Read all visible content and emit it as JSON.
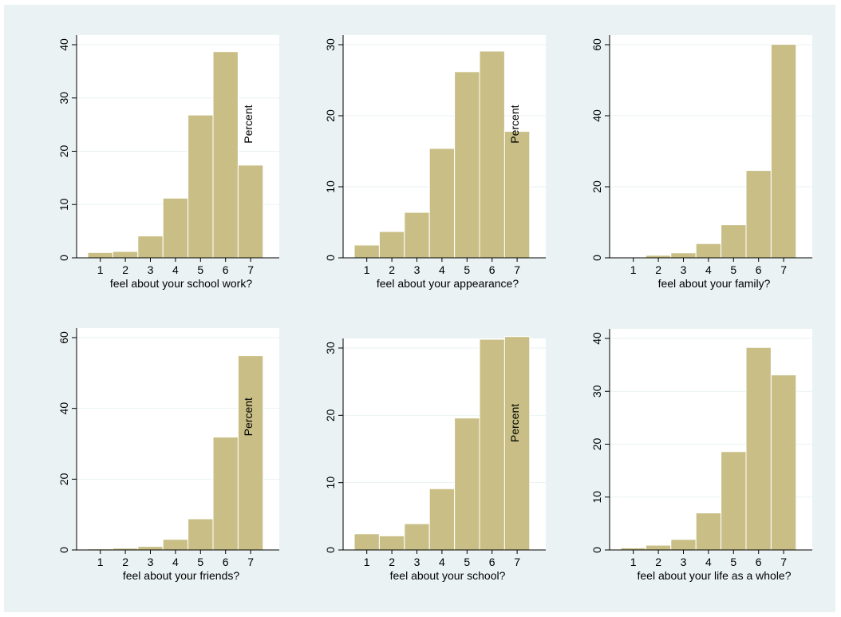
{
  "figure": {
    "background": "#eaf2f3",
    "plot_background": "#ffffff",
    "bar_color": "#c9bf86"
  },
  "chart_data": [
    {
      "type": "bar",
      "categories": [
        "1",
        "2",
        "3",
        "4",
        "5",
        "6",
        "7"
      ],
      "values": [
        1.0,
        1.2,
        4.1,
        11.2,
        26.8,
        38.7,
        17.4
      ],
      "xlabel": "feel about your school work?",
      "ylabel": "Percent",
      "yticks": [
        0,
        10,
        20,
        30,
        40
      ],
      "ylim": [
        0,
        40
      ]
    },
    {
      "type": "bar",
      "categories": [
        "1",
        "2",
        "3",
        "4",
        "5",
        "6",
        "7"
      ],
      "values": [
        1.8,
        3.7,
        6.4,
        15.4,
        26.2,
        29.1,
        17.8
      ],
      "xlabel": "feel about your appearance?",
      "ylabel": "Percent",
      "yticks": [
        0,
        10,
        20,
        30
      ],
      "ylim": [
        0,
        30
      ]
    },
    {
      "type": "bar",
      "categories": [
        "1",
        "2",
        "3",
        "4",
        "5",
        "6",
        "7"
      ],
      "values": [
        0.2,
        0.7,
        1.4,
        4.0,
        9.3,
        24.6,
        60.1
      ],
      "xlabel": "feel about your family?",
      "ylabel": "",
      "yticks": [
        0,
        20,
        40,
        60
      ],
      "ylim": [
        0,
        60
      ]
    },
    {
      "type": "bar",
      "categories": [
        "1",
        "2",
        "3",
        "4",
        "5",
        "6",
        "7"
      ],
      "values": [
        0.3,
        0.5,
        1.0,
        3.0,
        8.8,
        31.9,
        54.9
      ],
      "xlabel": "feel about your friends?",
      "ylabel": "Percent",
      "yticks": [
        0,
        20,
        40,
        60
      ],
      "ylim": [
        0,
        60
      ]
    },
    {
      "type": "bar",
      "categories": [
        "1",
        "2",
        "3",
        "4",
        "5",
        "6",
        "7"
      ],
      "values": [
        2.4,
        2.1,
        3.9,
        9.1,
        19.6,
        31.3,
        31.7
      ],
      "xlabel": "feel about your school?",
      "ylabel": "Percent",
      "yticks": [
        0,
        10,
        20,
        30
      ],
      "ylim": [
        0,
        30
      ]
    },
    {
      "type": "bar",
      "categories": [
        "1",
        "2",
        "3",
        "4",
        "5",
        "6",
        "7"
      ],
      "values": [
        0.4,
        0.9,
        2.0,
        7.0,
        18.6,
        38.3,
        33.1
      ],
      "xlabel": "feel about your life as a whole?",
      "ylabel": "",
      "yticks": [
        0,
        10,
        20,
        30,
        40
      ],
      "ylim": [
        0,
        40
      ]
    }
  ]
}
